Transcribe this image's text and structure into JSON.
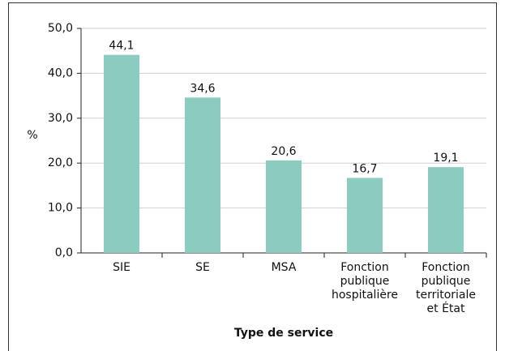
{
  "chart_data": {
    "type": "bar",
    "x_label": "Type de service",
    "y_label": "%",
    "categories": [
      "SIE",
      "SE",
      "MSA",
      "Fonction\npublique\nhospitalière",
      "Fonction\npublique\nterritoriale\net État"
    ],
    "values": [
      44.1,
      34.6,
      20.6,
      16.7,
      19.1
    ],
    "value_labels": [
      "44,1",
      "34,6",
      "20,6",
      "16,7",
      "19,1"
    ],
    "color": "#8ccbbf",
    "ylim": [
      0,
      50
    ],
    "yticks": [
      {
        "value": 0,
        "label": "0,0"
      },
      {
        "value": 10,
        "label": "10,0"
      },
      {
        "value": 20,
        "label": "20,0"
      },
      {
        "value": 30,
        "label": "30,0"
      },
      {
        "value": 40,
        "label": "40,0"
      },
      {
        "value": 50,
        "label": "50,0"
      }
    ],
    "grid": true
  }
}
